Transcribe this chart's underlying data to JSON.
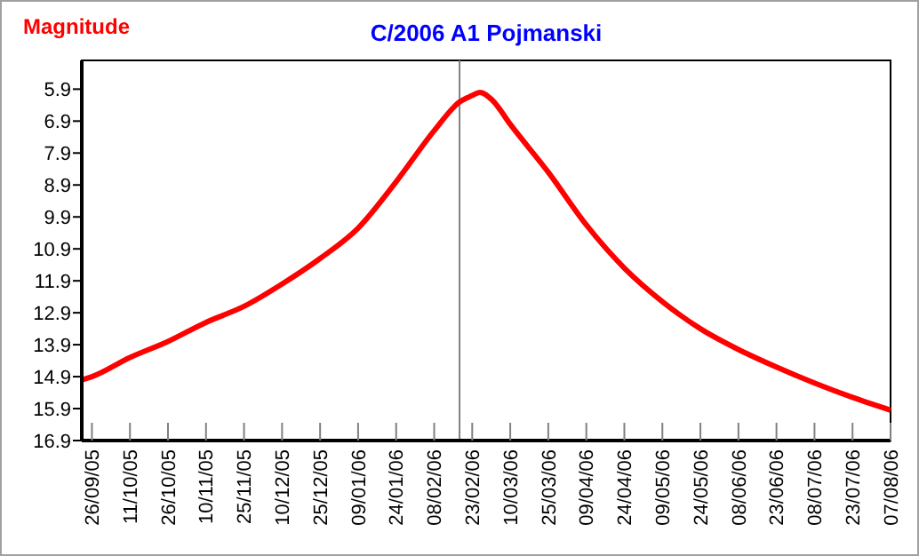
{
  "chart_data": {
    "type": "line",
    "title": "C/2006 A1 Pojmanski",
    "ylabel": "Magnitude",
    "x": [
      "2005-09-22",
      "2005-09-26",
      "2005-10-11",
      "2005-10-26",
      "2005-11-10",
      "2005-11-25",
      "2005-12-10",
      "2005-12-25",
      "2006-01-09",
      "2006-01-24",
      "2006-02-08",
      "2006-02-18",
      "2006-02-23",
      "2006-02-26",
      "2006-03-03",
      "2006-03-10",
      "2006-03-25",
      "2006-04-09",
      "2006-04-24",
      "2006-05-09",
      "2006-05-24",
      "2006-06-08",
      "2006-06-23",
      "2006-07-08",
      "2006-07-23",
      "2006-08-07"
    ],
    "series": [
      {
        "color": "#ff0000",
        "values": [
          15.0,
          14.9,
          14.3,
          13.8,
          13.2,
          12.7,
          12.0,
          11.2,
          10.25,
          8.8,
          7.2,
          6.3,
          6.1,
          6.0,
          6.25,
          7.0,
          8.5,
          10.15,
          11.5,
          12.55,
          13.4,
          14.05,
          14.6,
          15.1,
          15.55,
          15.95
        ]
      }
    ],
    "xlim": [
      "2005-09-22",
      "2006-08-07"
    ],
    "xticks": [
      {
        "value": "2005-09-26",
        "label": "26/09/05"
      },
      {
        "value": "2005-10-11",
        "label": "11/10/05"
      },
      {
        "value": "2005-10-26",
        "label": "26/10/05"
      },
      {
        "value": "2005-11-10",
        "label": "10/11/05"
      },
      {
        "value": "2005-11-25",
        "label": "25/11/05"
      },
      {
        "value": "2005-12-10",
        "label": "10/12/05"
      },
      {
        "value": "2005-12-25",
        "label": "25/12/05"
      },
      {
        "value": "2006-01-09",
        "label": "09/01/06"
      },
      {
        "value": "2006-01-24",
        "label": "24/01/06"
      },
      {
        "value": "2006-02-08",
        "label": "08/02/06"
      },
      {
        "value": "2006-02-23",
        "label": "23/02/06"
      },
      {
        "value": "2006-03-10",
        "label": "10/03/06"
      },
      {
        "value": "2006-03-25",
        "label": "25/03/06"
      },
      {
        "value": "2006-04-09",
        "label": "09/04/06"
      },
      {
        "value": "2006-04-24",
        "label": "24/04/06"
      },
      {
        "value": "2006-05-09",
        "label": "09/05/06"
      },
      {
        "value": "2006-05-24",
        "label": "24/05/06"
      },
      {
        "value": "2006-06-08",
        "label": "08/06/06"
      },
      {
        "value": "2006-06-23",
        "label": "23/06/06"
      },
      {
        "value": "2006-07-08",
        "label": "08/07/06"
      },
      {
        "value": "2006-07-23",
        "label": "23/07/06"
      },
      {
        "value": "2006-08-07",
        "label": "07/08/06"
      }
    ],
    "ylim": [
      16.9,
      5.0
    ],
    "yticks": [
      5.9,
      6.9,
      7.9,
      8.9,
      9.9,
      10.9,
      11.9,
      12.9,
      13.9,
      14.9,
      15.9,
      16.9
    ],
    "ref_lines": [
      {
        "axis": "x",
        "value": "2006-02-18",
        "color": "#808080"
      }
    ],
    "grid": false,
    "marker": "none",
    "line_style": "solid"
  }
}
